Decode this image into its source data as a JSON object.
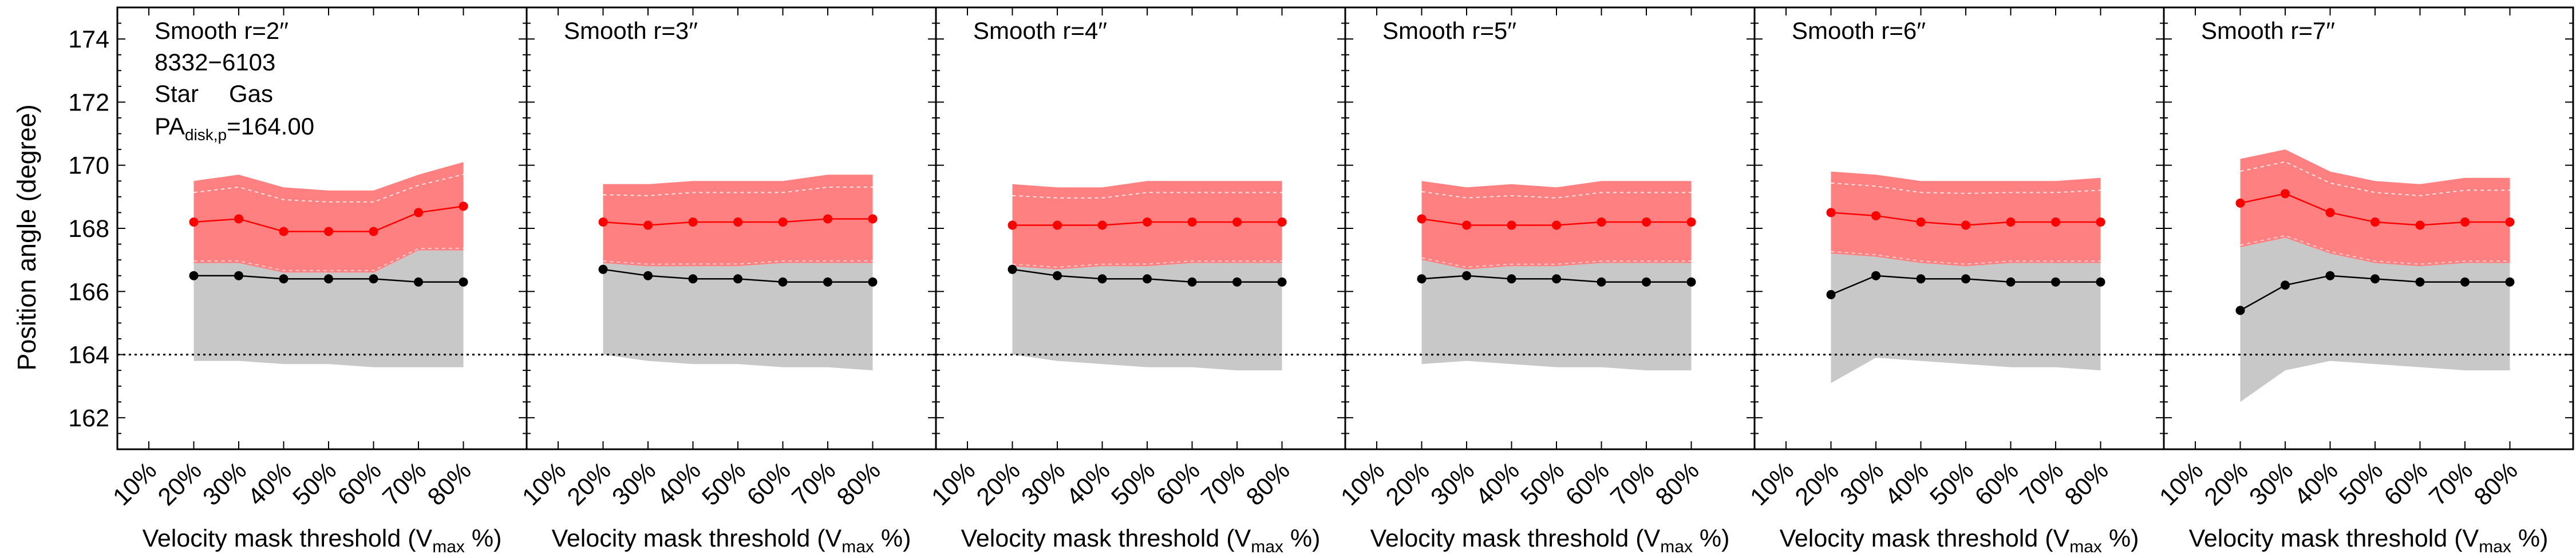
{
  "figure": {
    "ylabel": "Position angle (degree)",
    "object_id": "8332−6103",
    "legend_star": "Star",
    "legend_gas": "Gas",
    "pa_prefix": "PA",
    "pa_subscript": "disk,p",
    "pa_suffix": "=164.00",
    "xlabel_prefix": "Velocity mask threshold (V",
    "xlabel_sub": "max",
    "xlabel_suffix": " %)"
  },
  "colors": {
    "gas": "#ff0000",
    "gas_band": "#ff8080",
    "star": "#000000",
    "star_band": "#c8c8c8",
    "reference": "#000000"
  },
  "chart_data": [
    {
      "type": "line",
      "title": "Smooth r=2′′",
      "x": [
        "10%",
        "20%",
        "30%",
        "40%",
        "50%",
        "60%",
        "70%",
        "80%"
      ],
      "ylim": [
        161,
        175
      ],
      "yticks": [
        162,
        164,
        166,
        168,
        170,
        172,
        174
      ],
      "reference_pa": 164.0,
      "series": [
        {
          "name": "Star",
          "x": [
            "20%",
            "30%",
            "40%",
            "50%",
            "60%",
            "70%",
            "80%"
          ],
          "values": [
            166.5,
            166.5,
            166.4,
            166.4,
            166.4,
            166.3,
            166.3
          ],
          "band_low": [
            163.8,
            163.8,
            163.7,
            163.7,
            163.6,
            163.6,
            163.6
          ],
          "band_high": [
            169.5,
            169.7,
            166.6,
            166.6,
            166.6,
            167.3,
            167.3
          ]
        },
        {
          "name": "Gas",
          "x": [
            "20%",
            "30%",
            "40%",
            "50%",
            "60%",
            "70%",
            "80%"
          ],
          "values": [
            168.2,
            168.3,
            167.9,
            167.9,
            167.9,
            168.5,
            168.7
          ],
          "band_low": [
            166.9,
            166.9,
            166.6,
            166.6,
            166.6,
            167.3,
            167.3
          ],
          "band_high": [
            169.5,
            169.7,
            169.3,
            169.2,
            169.2,
            169.7,
            170.1
          ]
        }
      ]
    },
    {
      "type": "line",
      "title": "Smooth r=3′′",
      "x": [
        "10%",
        "20%",
        "30%",
        "40%",
        "50%",
        "60%",
        "70%",
        "80%"
      ],
      "ylim": [
        161,
        175
      ],
      "reference_pa": 164.0,
      "series": [
        {
          "name": "Star",
          "x": [
            "20%",
            "30%",
            "40%",
            "50%",
            "60%",
            "70%",
            "80%"
          ],
          "values": [
            166.7,
            166.5,
            166.4,
            166.4,
            166.3,
            166.3,
            166.3
          ],
          "band_low": [
            164.0,
            163.8,
            163.7,
            163.7,
            163.6,
            163.6,
            163.5
          ],
          "band_high": [
            169.4,
            169.4,
            166.8,
            166.8,
            166.9,
            166.9,
            166.9
          ]
        },
        {
          "name": "Gas",
          "x": [
            "20%",
            "30%",
            "40%",
            "50%",
            "60%",
            "70%",
            "80%"
          ],
          "values": [
            168.2,
            168.1,
            168.2,
            168.2,
            168.2,
            168.3,
            168.3
          ],
          "band_low": [
            166.9,
            166.8,
            166.8,
            166.8,
            166.9,
            166.9,
            166.9
          ],
          "band_high": [
            169.4,
            169.4,
            169.5,
            169.5,
            169.5,
            169.7,
            169.7
          ]
        }
      ]
    },
    {
      "type": "line",
      "title": "Smooth r=4′′",
      "x": [
        "10%",
        "20%",
        "30%",
        "40%",
        "50%",
        "60%",
        "70%",
        "80%"
      ],
      "ylim": [
        161,
        175
      ],
      "reference_pa": 164.0,
      "series": [
        {
          "name": "Star",
          "x": [
            "20%",
            "30%",
            "40%",
            "50%",
            "60%",
            "70%",
            "80%"
          ],
          "values": [
            166.7,
            166.5,
            166.4,
            166.4,
            166.3,
            166.3,
            166.3
          ],
          "band_low": [
            164.0,
            163.8,
            163.7,
            163.6,
            163.6,
            163.5,
            163.5
          ],
          "band_high": [
            169.4,
            166.7,
            166.8,
            166.8,
            166.9,
            166.9,
            166.9
          ]
        },
        {
          "name": "Gas",
          "x": [
            "20%",
            "30%",
            "40%",
            "50%",
            "60%",
            "70%",
            "80%"
          ],
          "values": [
            168.1,
            168.1,
            168.1,
            168.2,
            168.2,
            168.2,
            168.2
          ],
          "band_low": [
            166.8,
            166.7,
            166.8,
            166.8,
            166.9,
            166.9,
            166.9
          ],
          "band_high": [
            169.4,
            169.3,
            169.3,
            169.5,
            169.5,
            169.5,
            169.5
          ]
        }
      ]
    },
    {
      "type": "line",
      "title": "Smooth r=5′′",
      "x": [
        "10%",
        "20%",
        "30%",
        "40%",
        "50%",
        "60%",
        "70%",
        "80%"
      ],
      "ylim": [
        161,
        175
      ],
      "reference_pa": 164.0,
      "series": [
        {
          "name": "Star",
          "x": [
            "20%",
            "30%",
            "40%",
            "50%",
            "60%",
            "70%",
            "80%"
          ],
          "values": [
            166.4,
            166.5,
            166.4,
            166.4,
            166.3,
            166.3,
            166.3
          ],
          "band_low": [
            163.7,
            163.8,
            163.7,
            163.6,
            163.6,
            163.5,
            163.5
          ],
          "band_high": [
            167.0,
            166.7,
            166.8,
            166.8,
            166.9,
            166.9,
            166.9
          ]
        },
        {
          "name": "Gas",
          "x": [
            "20%",
            "30%",
            "40%",
            "50%",
            "60%",
            "70%",
            "80%"
          ],
          "values": [
            168.3,
            168.1,
            168.1,
            168.1,
            168.2,
            168.2,
            168.2
          ],
          "band_low": [
            167.0,
            166.7,
            166.8,
            166.8,
            166.9,
            166.9,
            166.9
          ],
          "band_high": [
            169.5,
            169.3,
            169.4,
            169.3,
            169.5,
            169.5,
            169.5
          ]
        }
      ]
    },
    {
      "type": "line",
      "title": "Smooth r=6′′",
      "x": [
        "10%",
        "20%",
        "30%",
        "40%",
        "50%",
        "60%",
        "70%",
        "80%"
      ],
      "ylim": [
        161,
        175
      ],
      "reference_pa": 164.0,
      "series": [
        {
          "name": "Star",
          "x": [
            "20%",
            "30%",
            "40%",
            "50%",
            "60%",
            "70%",
            "80%"
          ],
          "values": [
            165.9,
            166.5,
            166.4,
            166.4,
            166.3,
            166.3,
            166.3
          ],
          "band_low": [
            163.1,
            163.9,
            163.8,
            163.7,
            163.6,
            163.6,
            163.5
          ],
          "band_high": [
            167.2,
            167.1,
            166.9,
            166.8,
            166.9,
            166.9,
            166.9
          ]
        },
        {
          "name": "Gas",
          "x": [
            "20%",
            "30%",
            "40%",
            "50%",
            "60%",
            "70%",
            "80%"
          ],
          "values": [
            168.5,
            168.4,
            168.2,
            168.1,
            168.2,
            168.2,
            168.2
          ],
          "band_low": [
            167.2,
            167.1,
            166.9,
            166.8,
            166.9,
            166.9,
            166.9
          ],
          "band_high": [
            169.8,
            169.7,
            169.5,
            169.5,
            169.5,
            169.5,
            169.6
          ]
        }
      ]
    },
    {
      "type": "line",
      "title": "Smooth r=7′′",
      "x": [
        "10%",
        "20%",
        "30%",
        "40%",
        "50%",
        "60%",
        "70%",
        "80%"
      ],
      "ylim": [
        161,
        175
      ],
      "reference_pa": 164.0,
      "series": [
        {
          "name": "Star",
          "x": [
            "20%",
            "30%",
            "40%",
            "50%",
            "60%",
            "70%",
            "80%"
          ],
          "values": [
            165.4,
            166.2,
            166.5,
            166.4,
            166.3,
            166.3,
            166.3
          ],
          "band_low": [
            162.5,
            163.5,
            163.8,
            163.7,
            163.6,
            163.5,
            163.5
          ],
          "band_high": [
            167.4,
            167.7,
            167.2,
            166.9,
            166.9,
            166.9,
            166.9
          ]
        },
        {
          "name": "Gas",
          "x": [
            "20%",
            "30%",
            "40%",
            "50%",
            "60%",
            "70%",
            "80%"
          ],
          "values": [
            168.8,
            169.1,
            168.5,
            168.2,
            168.1,
            168.2,
            168.2
          ],
          "band_low": [
            167.4,
            167.7,
            167.2,
            166.9,
            166.8,
            166.9,
            166.9
          ],
          "band_high": [
            170.2,
            170.5,
            169.8,
            169.5,
            169.4,
            169.6,
            169.6
          ]
        }
      ]
    }
  ]
}
